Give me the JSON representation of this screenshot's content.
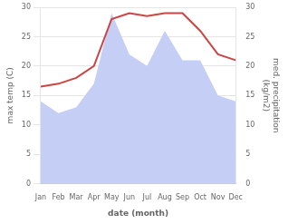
{
  "chart_data": {
    "type": "line",
    "categories": [
      "Jan",
      "Feb",
      "Mar",
      "Apr",
      "May",
      "Jun",
      "Jul",
      "Aug",
      "Sep",
      "Oct",
      "Nov",
      "Dec"
    ],
    "series": [
      {
        "type": "line",
        "color": "#cc4444",
        "values": [
          16.5,
          17,
          18,
          20,
          28,
          29,
          28.5,
          29,
          29,
          26,
          22,
          21
        ]
      },
      {
        "type": "area",
        "color": "#c5cef5",
        "axis": "y2",
        "values": [
          14,
          12,
          13,
          17,
          29,
          22,
          20,
          26,
          21,
          21,
          15,
          14
        ]
      }
    ],
    "xlabel": "date (month)",
    "ylabel": "max temp (C)",
    "y2label": "med. precipitation\n(kg/m2)",
    "ylim": [
      0,
      30
    ],
    "yticks": [
      0,
      5,
      10,
      15,
      20,
      25,
      30
    ],
    "y2lim": [
      0,
      30
    ],
    "y2ticks": [
      0,
      5,
      10,
      15,
      20,
      25,
      30
    ],
    "grid": true
  }
}
